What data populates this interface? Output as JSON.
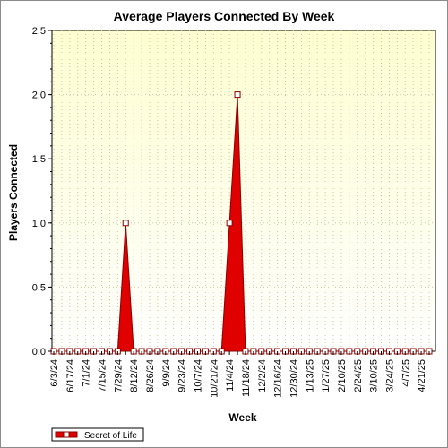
{
  "chart_data": {
    "type": "area",
    "title": "Average Players Connected By Week",
    "xlabel": "Week",
    "ylabel": "Players Connected",
    "ylim": [
      0,
      2.5
    ],
    "yticks": [
      "0.0",
      "0.5",
      "1.0",
      "1.5",
      "2.0",
      "2.5"
    ],
    "grid": true,
    "legend_position": "bottom-left",
    "x": [
      "6/3/24",
      "6/10/24",
      "6/17/24",
      "6/24/24",
      "7/1/24",
      "7/8/24",
      "7/15/24",
      "7/22/24",
      "7/29/24",
      "8/5/24",
      "8/12/24",
      "8/19/24",
      "8/26/24",
      "9/2/24",
      "9/9/24",
      "9/16/24",
      "9/23/24",
      "9/30/24",
      "10/7/24",
      "10/14/24",
      "10/21/24",
      "10/28/24",
      "11/4/24",
      "11/11/24",
      "11/18/24",
      "11/25/24",
      "12/2/24",
      "12/9/24",
      "12/16/24",
      "12/23/24",
      "12/30/24",
      "1/6/25",
      "1/13/25",
      "1/20/25",
      "1/27/25",
      "2/3/25",
      "2/10/25",
      "2/17/25",
      "2/24/25",
      "3/3/25",
      "3/10/25",
      "3/17/25",
      "3/24/25",
      "3/31/25",
      "4/7/25",
      "4/14/25",
      "4/21/25",
      "4/28/25"
    ],
    "x_tick_labels": [
      "6/3/24",
      "6/17/24",
      "7/1/24",
      "7/15/24",
      "7/29/24",
      "8/12/24",
      "8/26/24",
      "9/9/24",
      "9/23/24",
      "10/7/24",
      "10/21/24",
      "11/4/24",
      "11/18/24",
      "12/2/24",
      "12/16/24",
      "12/30/24",
      "1/13/25",
      "1/27/25",
      "2/10/25",
      "2/24/25",
      "3/10/25",
      "3/24/25",
      "4/7/25",
      "4/21/25"
    ],
    "series": [
      {
        "name": "Secret of Life",
        "color": "#e00000",
        "values": [
          0,
          0,
          0,
          0,
          0,
          0,
          0,
          0,
          0,
          1,
          0,
          0,
          0,
          0,
          0,
          0,
          0,
          0,
          0,
          0,
          0,
          0,
          1,
          2,
          0,
          0,
          0,
          0,
          0,
          0,
          0,
          0,
          0,
          0,
          0,
          0,
          0,
          0,
          0,
          0,
          0,
          0,
          0,
          0,
          0,
          0,
          0,
          0
        ]
      }
    ]
  },
  "colors": {
    "plot_bg_bottom": "#ffffff",
    "plot_bg_top": "#ffffd2",
    "grid": "#c8c8a0",
    "series_fill": "#e00000",
    "series_stroke": "#8b0000"
  }
}
